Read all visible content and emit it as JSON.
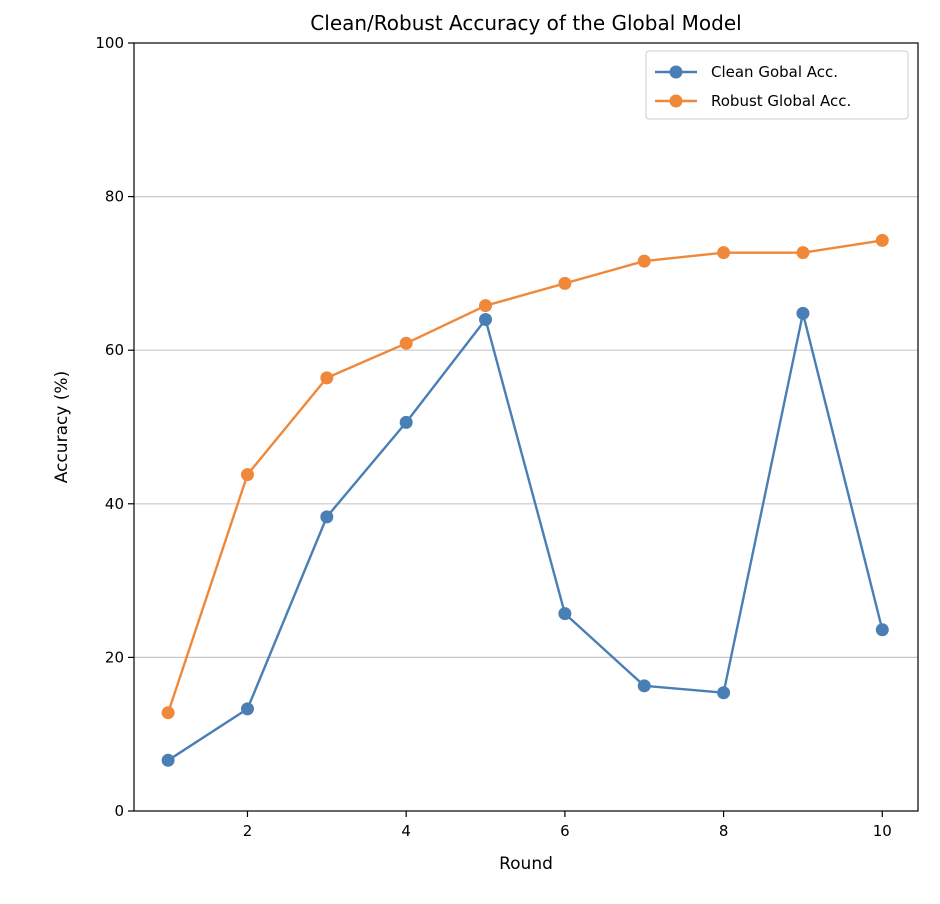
{
  "chart_data": {
    "type": "line",
    "title": "Clean/Robust Accuracy of the Global Model",
    "xlabel": "Round",
    "ylabel": "Accuracy (%)",
    "xlim": [
      0.57,
      10.45
    ],
    "ylim": [
      0,
      100
    ],
    "x_ticks": [
      2,
      4,
      6,
      8,
      10
    ],
    "y_ticks": [
      0,
      20,
      40,
      60,
      80,
      100
    ],
    "grid": "horizontal",
    "legend_position": "upper right",
    "x": [
      1,
      2,
      3,
      4,
      5,
      6,
      7,
      8,
      9,
      10
    ],
    "series": [
      {
        "name": "Clean Gobal Acc.",
        "color": "#4a7fb5",
        "marker": "circle",
        "values": [
          6.6,
          13.3,
          38.3,
          50.6,
          64.0,
          25.7,
          16.3,
          15.4,
          64.8,
          23.6
        ]
      },
      {
        "name": "Robust Global Acc.",
        "color": "#f0883a",
        "marker": "circle",
        "values": [
          12.8,
          43.8,
          56.4,
          60.9,
          65.8,
          68.7,
          71.6,
          72.7,
          72.7,
          74.3
        ]
      }
    ]
  }
}
